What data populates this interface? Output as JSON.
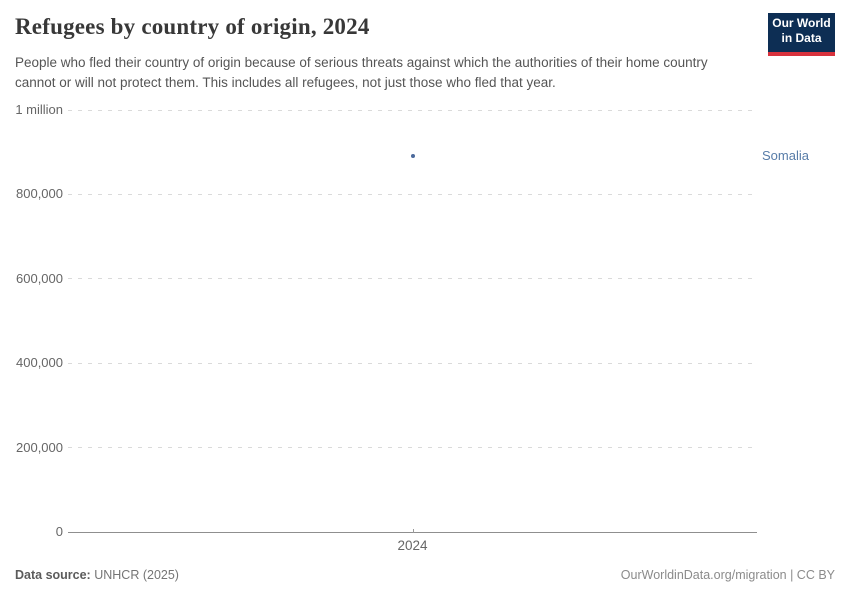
{
  "header": {
    "title": "Refugees by country of origin, 2024",
    "subtitle": "People who fled their country of origin because of serious threats against which the authorities of their home country cannot or will not protect them. This includes all refugees, not just those who fled that year.",
    "logo": {
      "line1": "Our World",
      "line2": "in Data",
      "bg_color": "#0d2e54",
      "stripe_color": "#d8323d"
    }
  },
  "chart_data": {
    "type": "scatter",
    "title": "Refugees by country of origin, 2024",
    "x": [
      2024
    ],
    "series": [
      {
        "name": "Somalia",
        "values": [
          890000
        ]
      }
    ],
    "xlabel": "",
    "ylabel": "",
    "ylim": [
      0,
      1000000
    ],
    "yticks": [
      {
        "value": 0,
        "label": "0"
      },
      {
        "value": 200000,
        "label": "200,000"
      },
      {
        "value": 400000,
        "label": "400,000"
      },
      {
        "value": 600000,
        "label": "600,000"
      },
      {
        "value": 800000,
        "label": "800,000"
      },
      {
        "value": 1000000,
        "label": "1 million"
      }
    ],
    "xticks": [
      {
        "value": 2024,
        "label": "2024"
      }
    ],
    "grid": "horizontal-dashed",
    "legend_position": "right-of-point",
    "point_color": "#4c6a9c",
    "entity_label_color": "#577ca8",
    "gridline_color": "#dadada",
    "axis_line_color": "#8f8f8f"
  },
  "footer": {
    "source_label": "Data source:",
    "source_value": "UNHCR (2025)",
    "credit": "OurWorldinData.org/migration | CC BY"
  }
}
